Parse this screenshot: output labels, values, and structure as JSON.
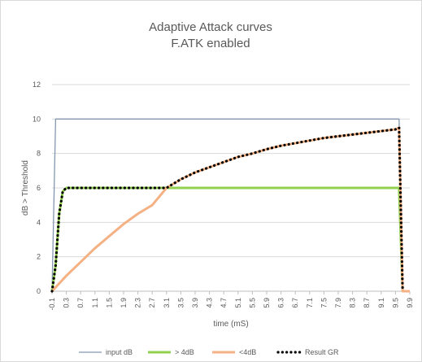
{
  "chart_data": {
    "type": "line",
    "title": "Adaptive Attack curves",
    "subtitle": "F.ATK enabled",
    "xlabel": "time (mS)",
    "ylabel": "dB > Threshold",
    "x_ticks": [
      "-0.1",
      "0.3",
      "0.7",
      "1.1",
      "1.5",
      "1.9",
      "2.3",
      "2.7",
      "3.1",
      "3.5",
      "3.9",
      "4.3",
      "4.7",
      "5.1",
      "5.5",
      "5.9",
      "6.3",
      "6.7",
      "7.1",
      "7.5",
      "7.9",
      "8.3",
      "8.7",
      "9.1",
      "9.5",
      "9.9"
    ],
    "xlim": [
      -0.1,
      9.9
    ],
    "ylim": [
      0,
      12
    ],
    "y_ticks": [
      "0",
      "2",
      "4",
      "6",
      "8",
      "10",
      "12"
    ],
    "grid": true,
    "legend_position": "bottom",
    "series": [
      {
        "name": "input dB",
        "color": "#8497b0",
        "style": "thin",
        "points": [
          [
            -0.1,
            0
          ],
          [
            0.0,
            10
          ],
          [
            9.6,
            10
          ],
          [
            9.7,
            0
          ]
        ]
      },
      {
        "name": "> 4dB",
        "color": "#92d050",
        "style": "thick",
        "points": [
          [
            -0.1,
            0
          ],
          [
            0.0,
            1.5
          ],
          [
            0.1,
            4.5
          ],
          [
            0.2,
            5.8
          ],
          [
            0.3,
            6
          ],
          [
            9.6,
            6
          ],
          [
            9.7,
            0
          ]
        ]
      },
      {
        "name": "<4dB",
        "color": "#f4b183",
        "style": "thick",
        "points": [
          [
            -0.1,
            0
          ],
          [
            0.3,
            0.9
          ],
          [
            0.7,
            1.7
          ],
          [
            1.1,
            2.5
          ],
          [
            1.5,
            3.2
          ],
          [
            1.9,
            3.9
          ],
          [
            2.3,
            4.5
          ],
          [
            2.7,
            5.0
          ],
          [
            3.1,
            6.0
          ],
          [
            3.5,
            6.5
          ],
          [
            3.9,
            6.9
          ],
          [
            4.3,
            7.2
          ],
          [
            4.7,
            7.5
          ],
          [
            5.1,
            7.8
          ],
          [
            5.5,
            8.0
          ],
          [
            5.9,
            8.25
          ],
          [
            6.3,
            8.45
          ],
          [
            6.7,
            8.6
          ],
          [
            7.1,
            8.75
          ],
          [
            7.5,
            8.9
          ],
          [
            7.9,
            9.0
          ],
          [
            8.3,
            9.1
          ],
          [
            8.7,
            9.2
          ],
          [
            9.1,
            9.3
          ],
          [
            9.5,
            9.4
          ],
          [
            9.6,
            9.5
          ],
          [
            9.7,
            0
          ],
          [
            9.9,
            0
          ]
        ]
      },
      {
        "name": "Result  GR",
        "color": "#000000",
        "style": "dotted",
        "points": [
          [
            -0.1,
            0
          ],
          [
            0.0,
            1.5
          ],
          [
            0.1,
            4.5
          ],
          [
            0.2,
            5.8
          ],
          [
            0.3,
            6
          ],
          [
            3.0,
            6
          ],
          [
            3.1,
            6.0
          ],
          [
            3.5,
            6.5
          ],
          [
            3.9,
            6.9
          ],
          [
            4.3,
            7.2
          ],
          [
            4.7,
            7.5
          ],
          [
            5.1,
            7.8
          ],
          [
            5.5,
            8.0
          ],
          [
            5.9,
            8.25
          ],
          [
            6.3,
            8.45
          ],
          [
            6.7,
            8.6
          ],
          [
            7.1,
            8.75
          ],
          [
            7.5,
            8.9
          ],
          [
            7.9,
            9.0
          ],
          [
            8.3,
            9.1
          ],
          [
            8.7,
            9.2
          ],
          [
            9.1,
            9.3
          ],
          [
            9.5,
            9.4
          ],
          [
            9.6,
            9.5
          ],
          [
            9.7,
            0
          ]
        ]
      }
    ]
  }
}
